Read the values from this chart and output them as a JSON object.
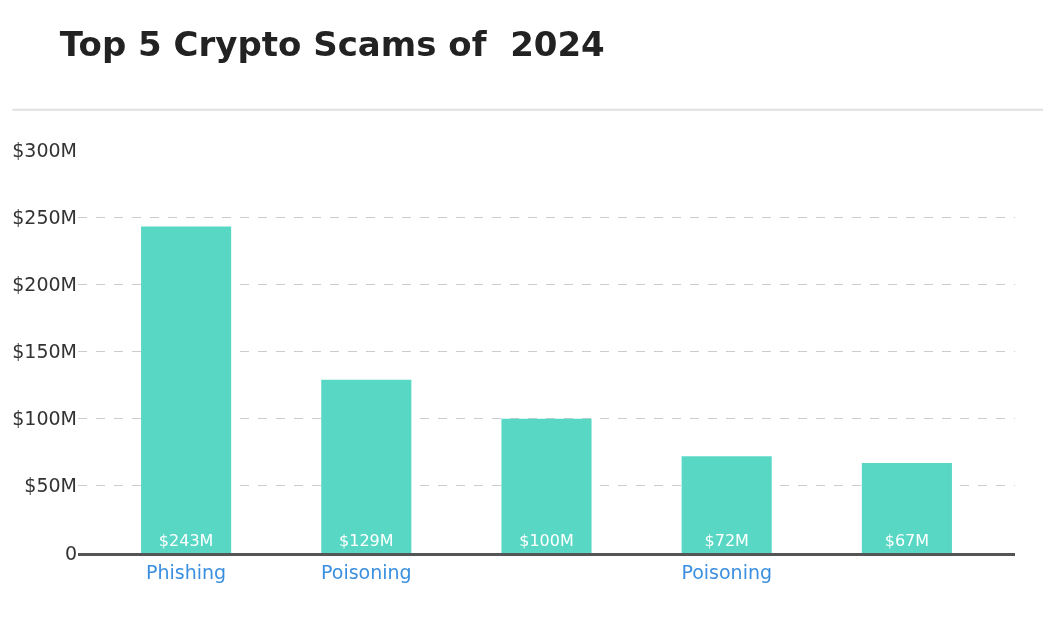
{
  "chart_data": {
    "type": "bar",
    "title": "Top 5 Crypto Scams of  2024",
    "categories": [
      "Phishing",
      "Poisoning",
      null,
      "Poisoning",
      null
    ],
    "values": [
      243,
      129,
      100,
      72,
      67
    ],
    "value_labels": [
      "$243M",
      "$129M",
      "$100M",
      "$72M",
      "$67M"
    ],
    "color": "#58d8c4",
    "ylim": [
      0,
      300
    ],
    "yticks": [
      0,
      {
        "value": 50,
        "label": "$50M"
      },
      {
        "value": 100,
        "label": "$100M"
      },
      {
        "value": 150,
        "label": "$150M"
      },
      {
        "value": 200,
        "label": "$200M"
      },
      {
        "value": 250,
        "label": "$250M"
      },
      {
        "value": 300,
        "label": "$300M"
      }
    ],
    "grid": "y"
  }
}
